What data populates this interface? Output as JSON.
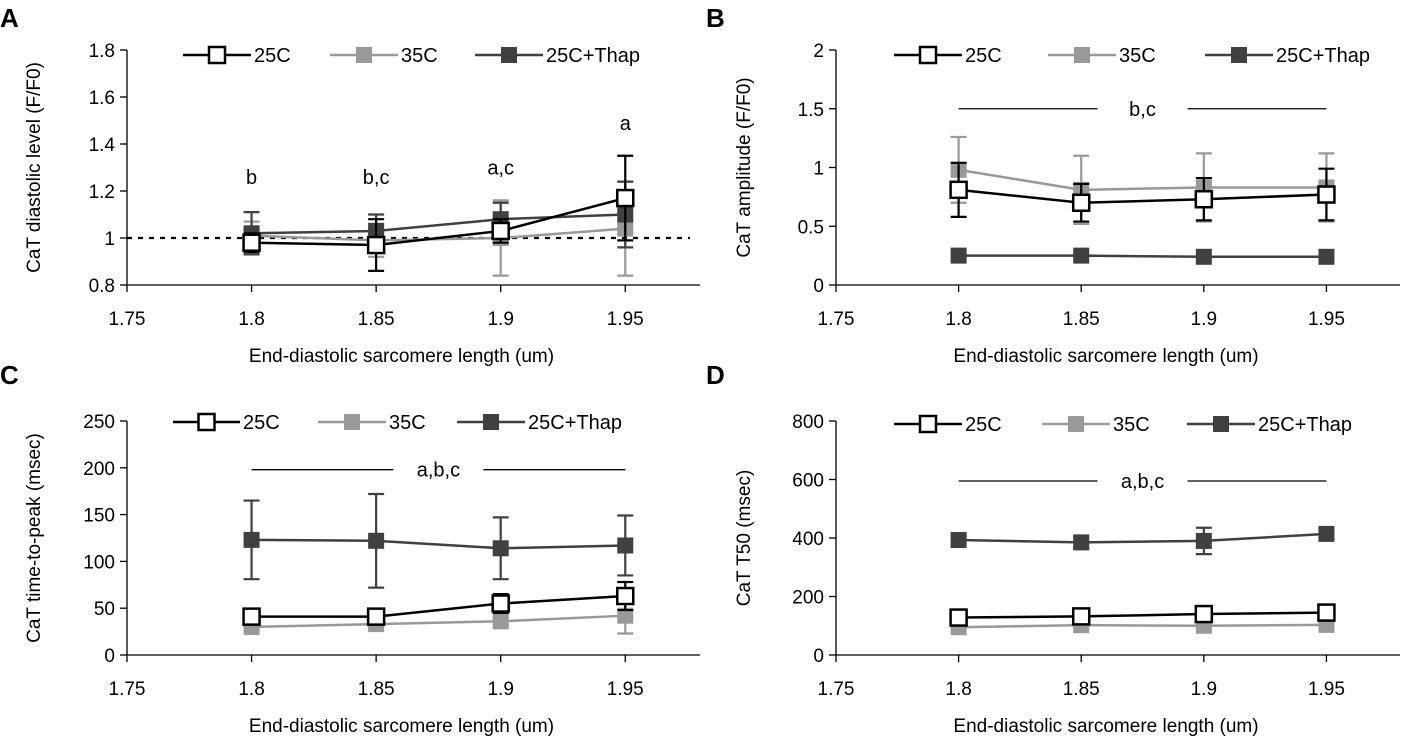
{
  "chart_data": [
    {
      "type": "line",
      "panel": "A",
      "title": "",
      "xlabel": "End-diastolic sarcomere length (um)",
      "ylabel": "CaT diastolic level (F/F0)",
      "xlim": [
        1.75,
        1.98
      ],
      "ylim": [
        0.8,
        1.8
      ],
      "xticks": [
        1.75,
        1.8,
        1.85,
        1.9,
        1.95
      ],
      "xtick_labels": [
        "1.75",
        "1.8",
        "1.85",
        "1.9",
        "1.95"
      ],
      "yticks": [
        0.8,
        1,
        1.2,
        1.4,
        1.6,
        1.8
      ],
      "ytick_labels": [
        "0.8",
        "1",
        "1.2",
        "1.4",
        "1.6",
        "1.8"
      ],
      "reference_line": 1,
      "x": [
        1.8,
        1.85,
        1.9,
        1.95
      ],
      "series": [
        {
          "name": "25C",
          "color": "#000000",
          "marker": "open-square",
          "values": [
            0.98,
            0.97,
            1.03,
            1.17
          ],
          "errors": [
            0.04,
            0.11,
            0.05,
            0.18
          ]
        },
        {
          "name": "35C",
          "color": "#999999",
          "marker": "filled-square",
          "values": [
            1.01,
            0.99,
            1.0,
            1.04
          ],
          "errors": [
            0.06,
            0.07,
            0.16,
            0.2
          ]
        },
        {
          "name": "25C+Thap",
          "color": "#404040",
          "marker": "filled-square",
          "values": [
            1.02,
            1.03,
            1.08,
            1.1
          ],
          "errors": [
            0.09,
            0.07,
            0.07,
            0.14
          ]
        }
      ],
      "annotations": [
        {
          "text": "b",
          "x": 1.8,
          "y": 1.23
        },
        {
          "text": "b,c",
          "x": 1.85,
          "y": 1.23
        },
        {
          "text": "a,c",
          "x": 1.9,
          "y": 1.27
        },
        {
          "text": "a",
          "x": 1.95,
          "y": 1.46
        }
      ],
      "legend": [
        "25C",
        "35C",
        "25C+Thap"
      ]
    },
    {
      "type": "line",
      "panel": "B",
      "title": "",
      "xlabel": "End-diastolic sarcomere length (um)",
      "ylabel": "CaT amplitude (F/F0)",
      "xlim": [
        1.75,
        1.98
      ],
      "ylim": [
        0,
        2
      ],
      "xticks": [
        1.75,
        1.8,
        1.85,
        1.9,
        1.95
      ],
      "xtick_labels": [
        "1.75",
        "1.8",
        "1.85",
        "1.9",
        "1.95"
      ],
      "yticks": [
        0,
        0.5,
        1,
        1.5,
        2
      ],
      "ytick_labels": [
        "0",
        "0.5",
        "1",
        "1.5",
        "2"
      ],
      "x": [
        1.8,
        1.85,
        1.9,
        1.95
      ],
      "series": [
        {
          "name": "25C",
          "color": "#000000",
          "marker": "open-square",
          "values": [
            0.81,
            0.7,
            0.73,
            0.77
          ],
          "errors": [
            0.23,
            0.16,
            0.18,
            0.22
          ]
        },
        {
          "name": "35C",
          "color": "#999999",
          "marker": "filled-square",
          "values": [
            0.98,
            0.81,
            0.83,
            0.83
          ],
          "errors": [
            0.28,
            0.29,
            0.29,
            0.29
          ]
        },
        {
          "name": "25C+Thap",
          "color": "#404040",
          "marker": "filled-square",
          "values": [
            0.25,
            0.25,
            0.24,
            0.24
          ],
          "errors": [
            0,
            0,
            0,
            0
          ]
        }
      ],
      "bracket": {
        "text": "b,c",
        "x_start": 1.8,
        "x_end": 1.95,
        "y": 1.5
      },
      "legend": [
        "25C",
        "35C",
        "25C+Thap"
      ]
    },
    {
      "type": "line",
      "panel": "C",
      "title": "",
      "xlabel": "End-diastolic sarcomere length (um)",
      "ylabel": "CaT time-to-peak (msec)",
      "xlim": [
        1.75,
        1.98
      ],
      "ylim": [
        0,
        250
      ],
      "xticks": [
        1.75,
        1.8,
        1.85,
        1.9,
        1.95
      ],
      "xtick_labels": [
        "1.75",
        "1.8",
        "1.85",
        "1.9",
        "1.95"
      ],
      "yticks": [
        0,
        50,
        100,
        150,
        200,
        250
      ],
      "ytick_labels": [
        "0",
        "50",
        "100",
        "150",
        "200",
        "250"
      ],
      "x": [
        1.8,
        1.85,
        1.9,
        1.95
      ],
      "series": [
        {
          "name": "25C",
          "color": "#000000",
          "marker": "open-square",
          "values": [
            41,
            41,
            55,
            63
          ],
          "errors": [
            6,
            7,
            10,
            15
          ]
        },
        {
          "name": "35C",
          "color": "#999999",
          "marker": "filled-square",
          "values": [
            30,
            33,
            36,
            42
          ],
          "errors": [
            3,
            5,
            5,
            19
          ]
        },
        {
          "name": "25C+Thap",
          "color": "#404040",
          "marker": "filled-square",
          "values": [
            123,
            122,
            114,
            117
          ],
          "errors": [
            42,
            50,
            33,
            32
          ]
        }
      ],
      "bracket": {
        "text": "a,b,c",
        "x_start": 1.8,
        "x_end": 1.95,
        "y": 198
      },
      "legend": [
        "25C",
        "35C",
        "25C+Thap"
      ]
    },
    {
      "type": "line",
      "panel": "D",
      "title": "",
      "xlabel": "End-diastolic sarcomere length (um)",
      "ylabel": "CaT T50 (msec)",
      "xlim": [
        1.75,
        1.98
      ],
      "ylim": [
        0,
        800
      ],
      "xticks": [
        1.75,
        1.8,
        1.85,
        1.9,
        1.95
      ],
      "xtick_labels": [
        "1.75",
        "1.8",
        "1.85",
        "1.9",
        "1.95"
      ],
      "yticks": [
        0,
        200,
        400,
        600,
        800
      ],
      "ytick_labels": [
        "0",
        "200",
        "400",
        "600",
        "800"
      ],
      "x": [
        1.8,
        1.85,
        1.9,
        1.95
      ],
      "series": [
        {
          "name": "25C",
          "color": "#000000",
          "marker": "open-square",
          "values": [
            128,
            132,
            140,
            145
          ],
          "errors": [
            8,
            8,
            10,
            10
          ]
        },
        {
          "name": "35C",
          "color": "#999999",
          "marker": "filled-square",
          "values": [
            95,
            102,
            100,
            103
          ],
          "errors": [
            6,
            6,
            6,
            6
          ]
        },
        {
          "name": "25C+Thap",
          "color": "#404040",
          "marker": "filled-square",
          "values": [
            393,
            385,
            390,
            414
          ],
          "errors": [
            20,
            18,
            45,
            20
          ]
        }
      ],
      "bracket": {
        "text": "a,b,c",
        "x_start": 1.8,
        "x_end": 1.95,
        "y": 595
      },
      "legend": [
        "25C",
        "35C",
        "25C+Thap"
      ]
    }
  ]
}
